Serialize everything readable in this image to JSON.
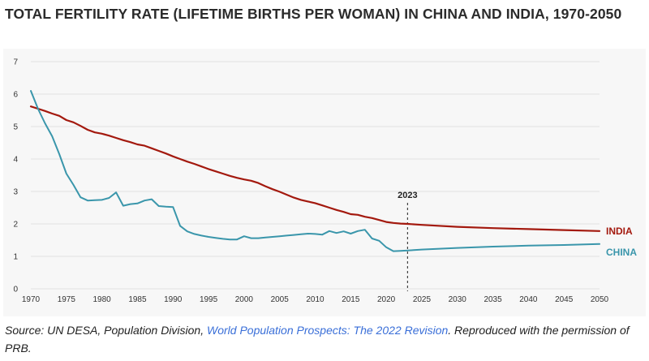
{
  "title": "TOTAL FERTILITY RATE (LIFETIME BIRTHS PER WOMAN) IN CHINA AND INDIA, 1970-2050",
  "source": {
    "prefix": "Source: UN DESA, Population Division, ",
    "link_text": "World Population Prospects: The 2022 Revision",
    "suffix": ". Reproduced with the permission of PRB."
  },
  "colors": {
    "india": "#a3190e",
    "china": "#3a96ab",
    "grid": "#e2e2e2",
    "marker": "#444444"
  },
  "chart_data": {
    "type": "line",
    "title": "TOTAL FERTILITY RATE (LIFETIME BIRTHS PER WOMAN) IN CHINA AND INDIA, 1970-2050",
    "xlabel": "",
    "ylabel": "",
    "xlim": [
      1970,
      2050
    ],
    "ylim": [
      0,
      7
    ],
    "x_ticks": [
      "1970",
      "1975",
      "1980",
      "1985",
      "1990",
      "1995",
      "2000",
      "2005",
      "2010",
      "2015",
      "2020",
      "2025",
      "2030",
      "2035",
      "2040",
      "2045",
      "2050"
    ],
    "y_ticks": [
      "0",
      "1",
      "2",
      "3",
      "4",
      "5",
      "6",
      "7"
    ],
    "grid": true,
    "annotation": {
      "label": "2023",
      "x": 2023
    },
    "series": [
      {
        "name": "INDIA",
        "x": [
          1970,
          1971,
          1972,
          1973,
          1974,
          1975,
          1976,
          1977,
          1978,
          1979,
          1980,
          1981,
          1982,
          1983,
          1984,
          1985,
          1986,
          1987,
          1988,
          1989,
          1990,
          1991,
          1992,
          1993,
          1994,
          1995,
          1996,
          1997,
          1998,
          1999,
          2000,
          2001,
          2002,
          2003,
          2004,
          2005,
          2006,
          2007,
          2008,
          2009,
          2010,
          2011,
          2012,
          2013,
          2014,
          2015,
          2016,
          2017,
          2018,
          2019,
          2020,
          2021,
          2022,
          2023,
          2025,
          2030,
          2035,
          2040,
          2045,
          2050
        ],
        "values": [
          5.62,
          5.55,
          5.48,
          5.4,
          5.33,
          5.2,
          5.13,
          5.02,
          4.9,
          4.82,
          4.78,
          4.72,
          4.65,
          4.58,
          4.52,
          4.45,
          4.41,
          4.33,
          4.25,
          4.17,
          4.08,
          4.0,
          3.92,
          3.85,
          3.77,
          3.69,
          3.62,
          3.55,
          3.48,
          3.42,
          3.37,
          3.33,
          3.26,
          3.16,
          3.07,
          2.99,
          2.9,
          2.81,
          2.74,
          2.69,
          2.64,
          2.57,
          2.5,
          2.43,
          2.37,
          2.3,
          2.28,
          2.22,
          2.18,
          2.12,
          2.06,
          2.03,
          2.01,
          2.0,
          1.97,
          1.91,
          1.87,
          1.84,
          1.81,
          1.78
        ]
      },
      {
        "name": "CHINA",
        "x": [
          1970,
          1971,
          1972,
          1973,
          1974,
          1975,
          1976,
          1977,
          1978,
          1979,
          1980,
          1981,
          1982,
          1983,
          1984,
          1985,
          1986,
          1987,
          1988,
          1989,
          1990,
          1991,
          1992,
          1993,
          1994,
          1995,
          1996,
          1997,
          1998,
          1999,
          2000,
          2001,
          2002,
          2003,
          2004,
          2005,
          2006,
          2007,
          2008,
          2009,
          2010,
          2011,
          2012,
          2013,
          2014,
          2015,
          2016,
          2017,
          2018,
          2019,
          2020,
          2021,
          2022,
          2023,
          2025,
          2030,
          2035,
          2040,
          2045,
          2050
        ],
        "values": [
          6.1,
          5.55,
          5.1,
          4.7,
          4.15,
          3.55,
          3.2,
          2.82,
          2.72,
          2.73,
          2.74,
          2.8,
          2.97,
          2.56,
          2.61,
          2.63,
          2.72,
          2.76,
          2.55,
          2.53,
          2.52,
          1.94,
          1.77,
          1.69,
          1.64,
          1.6,
          1.57,
          1.54,
          1.52,
          1.52,
          1.62,
          1.56,
          1.56,
          1.58,
          1.6,
          1.62,
          1.64,
          1.66,
          1.68,
          1.7,
          1.69,
          1.67,
          1.78,
          1.72,
          1.77,
          1.7,
          1.78,
          1.82,
          1.55,
          1.48,
          1.28,
          1.16,
          1.17,
          1.18,
          1.21,
          1.26,
          1.3,
          1.33,
          1.35,
          1.38
        ]
      }
    ]
  }
}
